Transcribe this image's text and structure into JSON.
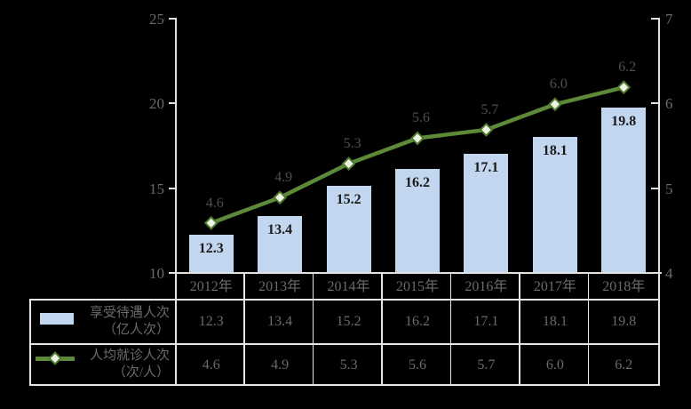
{
  "chart_data": {
    "type": "bar+line",
    "categories": [
      "2012年",
      "2013年",
      "2014年",
      "2015年",
      "2016年",
      "2017年",
      "2018年"
    ],
    "series": [
      {
        "name": "享受待遇人次（亿人次）",
        "type": "bar",
        "axis": "left",
        "values": [
          12.3,
          13.4,
          15.2,
          16.2,
          17.1,
          18.1,
          19.8
        ],
        "labels": [
          "12.3",
          "13.4",
          "15.2",
          "16.2",
          "17.1",
          "18.1",
          "19.8"
        ]
      },
      {
        "name": "人均就诊人次（次/人）",
        "type": "line",
        "axis": "right",
        "values": [
          4.6,
          4.9,
          5.3,
          5.6,
          5.7,
          6.0,
          6.2
        ],
        "labels": [
          "4.6",
          "4.9",
          "5.3",
          "5.6",
          "5.7",
          "6.0",
          "6.2"
        ]
      }
    ],
    "left_axis": {
      "min": 10,
      "max": 25,
      "tick_labels": [
        "25",
        "20",
        "15",
        "10"
      ],
      "tick_values": [
        25,
        20,
        15,
        10
      ]
    },
    "right_axis": {
      "min": 4,
      "max": 7,
      "tick_labels": [
        "7",
        "6",
        "5",
        "4"
      ],
      "tick_values": [
        7,
        6,
        5,
        4
      ]
    },
    "grid": false,
    "legend_position": "table-left",
    "title": ""
  },
  "legend": {
    "bar_row": {
      "line1": "享受待遇人次",
      "line2": "（亿人次）"
    },
    "line_row": {
      "line1": "人均就诊人次",
      "line2": "（次/人）"
    }
  },
  "colors": {
    "background": "#000000",
    "bar_fill": "#c3d6f0",
    "line_stroke": "#5d8a39",
    "marker_fill": "#edf3e3",
    "marker_stroke": "#4f7a2e",
    "axis_line": "#e2e2e2",
    "table_border": "#e6e6e6",
    "gray_text": "#6a6a6a",
    "line_label_text": "#4f4f4f",
    "bar_label_text": "#1a1a1a"
  }
}
